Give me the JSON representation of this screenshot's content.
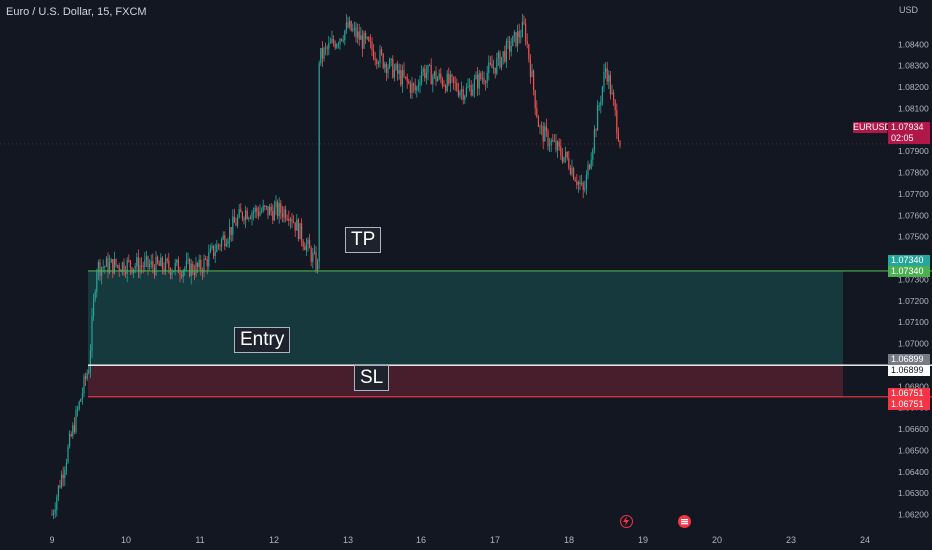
{
  "header": {
    "title": "Euro / U.S. Dollar, 15, FXCM"
  },
  "axis": {
    "currency": "USD"
  },
  "symbol_badge": "EURUSD",
  "live_price": {
    "price": "1.07934",
    "countdown": "02:05"
  },
  "annotations": {
    "tp": "TP",
    "entry": "Entry",
    "sl": "SL"
  },
  "price_badges": {
    "tp": [
      "1.07340",
      "1.07340"
    ],
    "entry": [
      "1.06899",
      "1.06899"
    ],
    "sl": [
      "1.06751",
      "1.06751"
    ]
  },
  "icons": {
    "marker1": "lightning-icon",
    "marker2": "flag-icon"
  },
  "colors": {
    "background": "#131722",
    "tp_line": "#4caf50",
    "sl_line": "#f23645",
    "entry_line": "#ffffff",
    "profit_zone": "#153b3e",
    "loss_zone": "#4a1f2c",
    "bull": "#26a69a",
    "bear": "#ef5350"
  },
  "chart_data": {
    "type": "candlestick",
    "title": "Euro / U.S. Dollar, 15, FXCM",
    "x_ticks": [
      "9",
      "10",
      "11",
      "12",
      "13",
      "16",
      "17",
      "18",
      "19",
      "20",
      "23",
      "24"
    ],
    "y_ticks": [
      "1.08400",
      "1.08300",
      "1.08200",
      "1.08100",
      "1.08000",
      "1.07900",
      "1.07800",
      "1.07700",
      "1.07600",
      "1.07500",
      "1.07400",
      "1.07300",
      "1.07200",
      "1.07100",
      "1.07000",
      "1.06900",
      "1.06800",
      "1.06700",
      "1.06600",
      "1.06500",
      "1.06400",
      "1.06300",
      "1.06200"
    ],
    "ylim": [
      1.0617,
      1.0857
    ],
    "last_price": 1.07934,
    "levels": {
      "take_profit": 1.0734,
      "entry": 1.06899,
      "stop_loss": 1.06751
    },
    "price_path": [
      {
        "x": "9",
        "y": 1.062
      },
      {
        "x": "9.5",
        "y": 1.069
      },
      {
        "x": "9.6",
        "y": 1.0736
      },
      {
        "x": "10",
        "y": 1.0737
      },
      {
        "x": "11",
        "y": 1.0735
      },
      {
        "x": "11.6",
        "y": 1.0762
      },
      {
        "x": "12.2",
        "y": 1.0762
      },
      {
        "x": "12.6",
        "y": 1.0735
      },
      {
        "x": "12.6",
        "y": 1.0833
      },
      {
        "x": "13",
        "y": 1.0848
      },
      {
        "x": "15.8",
        "y": 1.0818
      },
      {
        "x": "16",
        "y": 1.0828
      },
      {
        "x": "16.6",
        "y": 1.0818
      },
      {
        "x": "17",
        "y": 1.083
      },
      {
        "x": "17.4",
        "y": 1.0848
      },
      {
        "x": "17.6",
        "y": 1.08
      },
      {
        "x": "18",
        "y": 1.0785
      },
      {
        "x": "18.2",
        "y": 1.077
      },
      {
        "x": "18.5",
        "y": 1.083
      },
      {
        "x": "18.7",
        "y": 1.0793
      }
    ]
  }
}
